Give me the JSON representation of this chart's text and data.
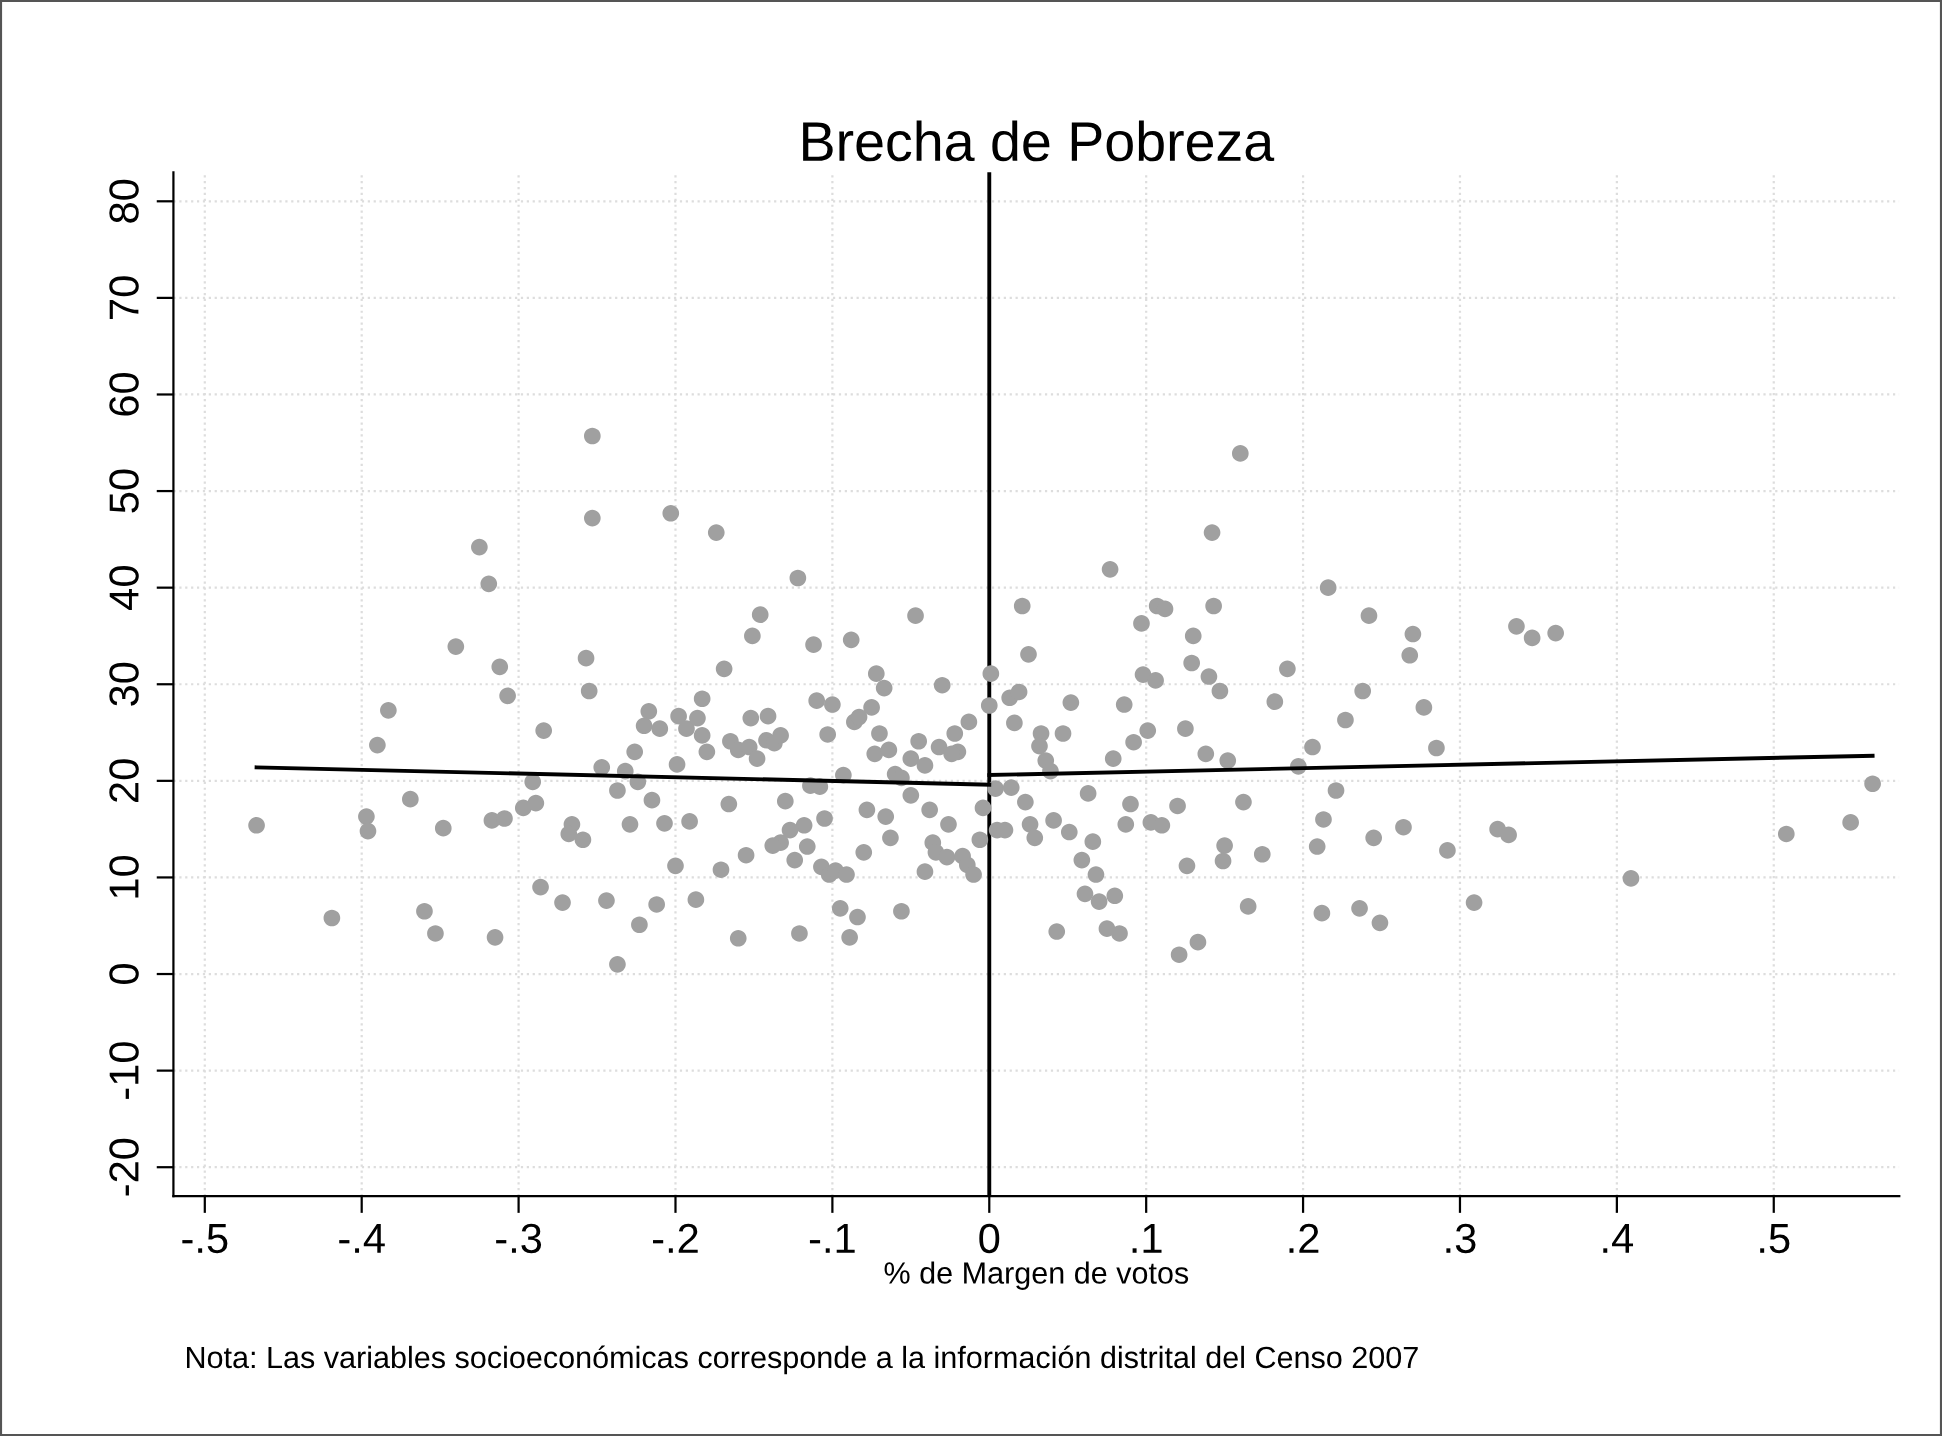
{
  "chart_data": {
    "type": "scatter",
    "title": "Brecha de Pobreza",
    "xlabel": "% de Margen de votos",
    "annotations": [
      "Nota: Las variables socioeconómicas corresponde a la información distrital del Censo 2007"
    ],
    "xlim": [
      -0.52,
      0.58
    ],
    "xticks": [
      {
        "value": -0.5,
        "label": "-.5"
      },
      {
        "value": -0.4,
        "label": "-.4"
      },
      {
        "value": -0.3,
        "label": "-.3"
      },
      {
        "value": -0.2,
        "label": "-.2"
      },
      {
        "value": -0.1,
        "label": "-.1"
      },
      0,
      {
        "value": 0.1,
        "label": ".1"
      },
      {
        "value": 0.2,
        "label": ".2"
      },
      {
        "value": 0.3,
        "label": ".3"
      },
      {
        "value": 0.4,
        "label": ".4"
      },
      {
        "value": 0.5,
        "label": ".5"
      }
    ],
    "ylim": [
      -23,
      83
    ],
    "yticks": [
      -20,
      -10,
      0,
      10,
      20,
      30,
      40,
      50,
      60,
      70,
      80
    ],
    "grid": true,
    "ref_lines": [
      {
        "axis": "x",
        "value": 0,
        "label": null,
        "color": "#000000",
        "line_style": "solid"
      }
    ],
    "series": [
      {
        "marker": "circle",
        "color": "#a0a0a0",
        "x": [
          -0.253,
          -0.253,
          -0.325,
          -0.319,
          -0.34,
          -0.312,
          -0.257,
          -0.255,
          -0.307,
          -0.383,
          -0.39,
          -0.284,
          -0.247,
          -0.291,
          -0.369,
          -0.467,
          -0.397,
          -0.396,
          -0.348,
          -0.317,
          -0.309,
          -0.297,
          -0.289,
          -0.266,
          -0.268,
          -0.259,
          -0.286,
          -0.272,
          -0.244,
          -0.419,
          -0.36,
          -0.353,
          -0.315,
          -0.203,
          -0.174,
          -0.122,
          -0.146,
          -0.151,
          -0.112,
          -0.088,
          -0.047,
          -0.169,
          -0.072,
          -0.067,
          -0.03,
          0.001,
          0.0,
          -0.183,
          -0.217,
          -0.22,
          -0.21,
          -0.198,
          -0.193,
          -0.186,
          -0.183,
          -0.18,
          -0.226,
          -0.232,
          -0.224,
          -0.237,
          -0.199,
          -0.165,
          -0.16,
          -0.153,
          -0.148,
          -0.152,
          -0.141,
          -0.142,
          -0.137,
          -0.133,
          -0.11,
          -0.1,
          -0.103,
          -0.086,
          -0.083,
          -0.075,
          -0.07,
          -0.073,
          -0.064,
          -0.045,
          -0.05,
          -0.041,
          -0.06,
          -0.056,
          -0.032,
          -0.022,
          -0.02,
          -0.013,
          -0.024,
          -0.093,
          -0.114,
          -0.108,
          -0.05,
          -0.038,
          -0.026,
          -0.004,
          0.004,
          0.005,
          -0.215,
          -0.229,
          -0.207,
          -0.191,
          -0.166,
          -0.13,
          -0.118,
          -0.127,
          -0.133,
          -0.138,
          -0.124,
          -0.116,
          -0.105,
          -0.078,
          -0.066,
          -0.063,
          -0.08,
          -0.107,
          -0.102,
          -0.098,
          -0.091,
          -0.036,
          -0.034,
          -0.027,
          -0.017,
          -0.014,
          -0.01,
          -0.006,
          -0.041,
          -0.2,
          -0.171,
          -0.155,
          -0.212,
          -0.223,
          -0.187,
          -0.16,
          -0.121,
          -0.095,
          -0.084,
          -0.089,
          -0.056,
          -0.237,
          0.16,
          0.142,
          0.077,
          0.216,
          0.021,
          0.107,
          0.112,
          0.143,
          0.242,
          0.097,
          0.13,
          0.025,
          0.129,
          0.098,
          0.106,
          0.14,
          0.147,
          0.19,
          0.238,
          0.182,
          0.013,
          0.019,
          0.052,
          0.086,
          0.016,
          0.033,
          0.032,
          0.047,
          0.036,
          0.039,
          0.079,
          0.092,
          0.101,
          0.125,
          0.138,
          0.152,
          0.227,
          0.206,
          0.197,
          0.221,
          0.014,
          0.023,
          0.063,
          0.09,
          0.12,
          0.162,
          0.213,
          0.245,
          0.01,
          0.026,
          0.029,
          0.041,
          0.051,
          0.087,
          0.103,
          0.11,
          0.066,
          0.059,
          0.068,
          0.061,
          0.07,
          0.08,
          0.043,
          0.075,
          0.083,
          0.121,
          0.133,
          0.126,
          0.15,
          0.149,
          0.174,
          0.209,
          0.165,
          0.212,
          0.236,
          0.249,
          0.27,
          0.268,
          0.277,
          0.285,
          0.336,
          0.346,
          0.361,
          0.264,
          0.292,
          0.324,
          0.331,
          0.309,
          0.409,
          0.508,
          0.549,
          0.563
        ],
        "values": [
          55.7,
          47.2,
          44.2,
          40.4,
          33.9,
          31.8,
          32.7,
          29.3,
          28.8,
          27.3,
          23.7,
          25.2,
          21.4,
          19.9,
          18.1,
          15.4,
          16.3,
          14.8,
          15.1,
          15.9,
          16.1,
          17.2,
          17.7,
          15.5,
          14.5,
          13.9,
          9.0,
          7.4,
          7.6,
          5.8,
          6.5,
          4.2,
          3.8,
          47.7,
          45.7,
          41.0,
          37.2,
          35.0,
          34.1,
          34.6,
          37.1,
          31.6,
          31.1,
          29.6,
          29.9,
          31.1,
          27.8,
          28.5,
          27.2,
          25.7,
          25.4,
          26.7,
          25.4,
          26.5,
          24.7,
          23.0,
          23.0,
          21.0,
          19.9,
          19.0,
          21.7,
          24.1,
          23.2,
          23.5,
          22.3,
          26.5,
          26.7,
          24.2,
          23.9,
          24.7,
          28.3,
          27.9,
          24.8,
          26.1,
          26.6,
          27.6,
          24.9,
          22.8,
          23.2,
          24.1,
          22.3,
          21.6,
          20.7,
          20.3,
          23.5,
          24.9,
          23.0,
          26.1,
          22.8,
          20.6,
          19.5,
          19.4,
          18.5,
          17.0,
          15.5,
          17.2,
          19.2,
          14.9,
          18.0,
          15.5,
          15.6,
          15.8,
          17.6,
          17.9,
          15.4,
          14.9,
          13.6,
          13.3,
          11.8,
          13.2,
          16.1,
          17.0,
          16.3,
          14.1,
          12.6,
          11.1,
          10.3,
          10.7,
          10.3,
          13.6,
          12.6,
          12.1,
          12.2,
          11.3,
          10.3,
          13.9,
          10.6,
          11.2,
          10.8,
          12.3,
          7.2,
          5.1,
          7.7,
          3.7,
          4.2,
          6.8,
          5.9,
          3.8,
          6.5,
          1.0,
          53.9,
          45.7,
          41.9,
          40.0,
          38.1,
          38.1,
          37.8,
          38.1,
          37.1,
          36.3,
          35.0,
          33.1,
          32.2,
          31.0,
          30.4,
          30.8,
          29.3,
          31.6,
          29.3,
          28.2,
          28.6,
          29.2,
          28.1,
          27.9,
          26.0,
          24.9,
          23.6,
          24.9,
          22.1,
          21.0,
          22.3,
          24.0,
          25.2,
          25.4,
          22.8,
          22.1,
          26.3,
          23.5,
          21.5,
          19.0,
          19.3,
          17.8,
          18.7,
          17.6,
          17.4,
          17.8,
          16.0,
          14.1,
          14.9,
          15.5,
          14.1,
          15.9,
          14.7,
          15.5,
          15.7,
          15.4,
          13.7,
          11.8,
          10.3,
          8.3,
          7.5,
          8.1,
          4.4,
          4.7,
          4.2,
          2.0,
          3.3,
          11.2,
          13.3,
          11.7,
          12.4,
          13.2,
          7.0,
          6.3,
          6.8,
          5.3,
          35.2,
          33.0,
          27.6,
          23.4,
          36.0,
          34.8,
          35.3,
          15.2,
          12.8,
          15.0,
          14.4,
          7.4,
          9.9,
          14.5,
          15.7,
          19.7
        ]
      },
      {
        "type": "line",
        "marker": "none",
        "line_style": "solid",
        "color": "#000000",
        "x": [
          -0.467,
          0
        ],
        "values": [
          21.4,
          19.6
        ]
      },
      {
        "type": "line",
        "marker": "none",
        "line_style": "solid",
        "color": "#000000",
        "x": [
          0,
          0.563
        ],
        "values": [
          20.6,
          22.6
        ]
      }
    ]
  }
}
